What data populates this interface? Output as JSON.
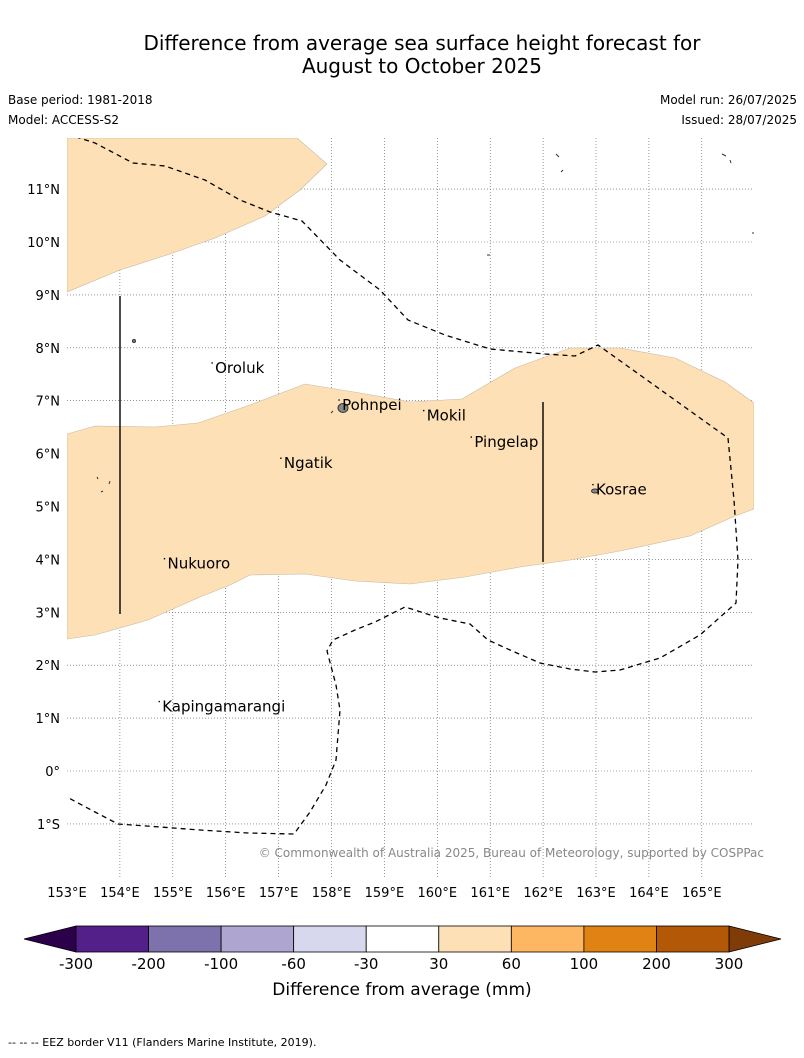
{
  "title": {
    "line1": "Difference from average sea surface height forecast for",
    "line2": "August to October 2025"
  },
  "meta": {
    "base_period": "Base period: 1981-2018",
    "model": "Model: ACCESS-S2",
    "model_run": "Model run: 26/07/2025",
    "issued": "Issued: 28/07/2025"
  },
  "copyright": "© Commonwealth of Australia 2025, Bureau of Meteorology, supported by COSPPac",
  "map": {
    "lon_range": [
      153,
      166
    ],
    "lat_range": [
      -2,
      12
    ],
    "lon_ticks": [
      "153°E",
      "154°E",
      "155°E",
      "156°E",
      "157°E",
      "158°E",
      "159°E",
      "160°E",
      "161°E",
      "162°E",
      "163°E",
      "164°E",
      "165°E"
    ],
    "lat_ticks": [
      "11°N",
      "10°N",
      "9°N",
      "8°N",
      "7°N",
      "6°N",
      "5°N",
      "4°N",
      "3°N",
      "2°N",
      "1°N",
      "0°",
      "1°S"
    ],
    "places": [
      {
        "name": "Oroluk",
        "lon": 155.8,
        "lat": 7.6
      },
      {
        "name": "Pohnpei",
        "lon": 158.2,
        "lat": 6.9
      },
      {
        "name": "Mokil",
        "lon": 159.8,
        "lat": 6.7
      },
      {
        "name": "Pingelap",
        "lon": 160.7,
        "lat": 6.2
      },
      {
        "name": "Ngatik",
        "lon": 157.1,
        "lat": 5.8
      },
      {
        "name": "Kosrae",
        "lon": 163.0,
        "lat": 5.3
      },
      {
        "name": "Nukuoro",
        "lon": 154.9,
        "lat": 3.9
      },
      {
        "name": "Kapingamarangi",
        "lon": 154.8,
        "lat": 1.2
      }
    ],
    "fill_color": "#fde0b6"
  },
  "colorbar": {
    "label": "Difference from average (mm)",
    "ticks": [
      "-300",
      "-200",
      "-100",
      "-60",
      "-30",
      "30",
      "60",
      "100",
      "200",
      "300"
    ],
    "colors": [
      "#531f89",
      "#7e72ad",
      "#aea6d0",
      "#d7d8ee",
      "#ffffff",
      "#fde0b6",
      "#fdb763",
      "#e08214",
      "#b35806"
    ],
    "under_color": "#2d004b",
    "over_color": "#7f3b08"
  },
  "footnote": "-- -- -- EEZ border V11 (Flanders Marine Institute, 2019)."
}
